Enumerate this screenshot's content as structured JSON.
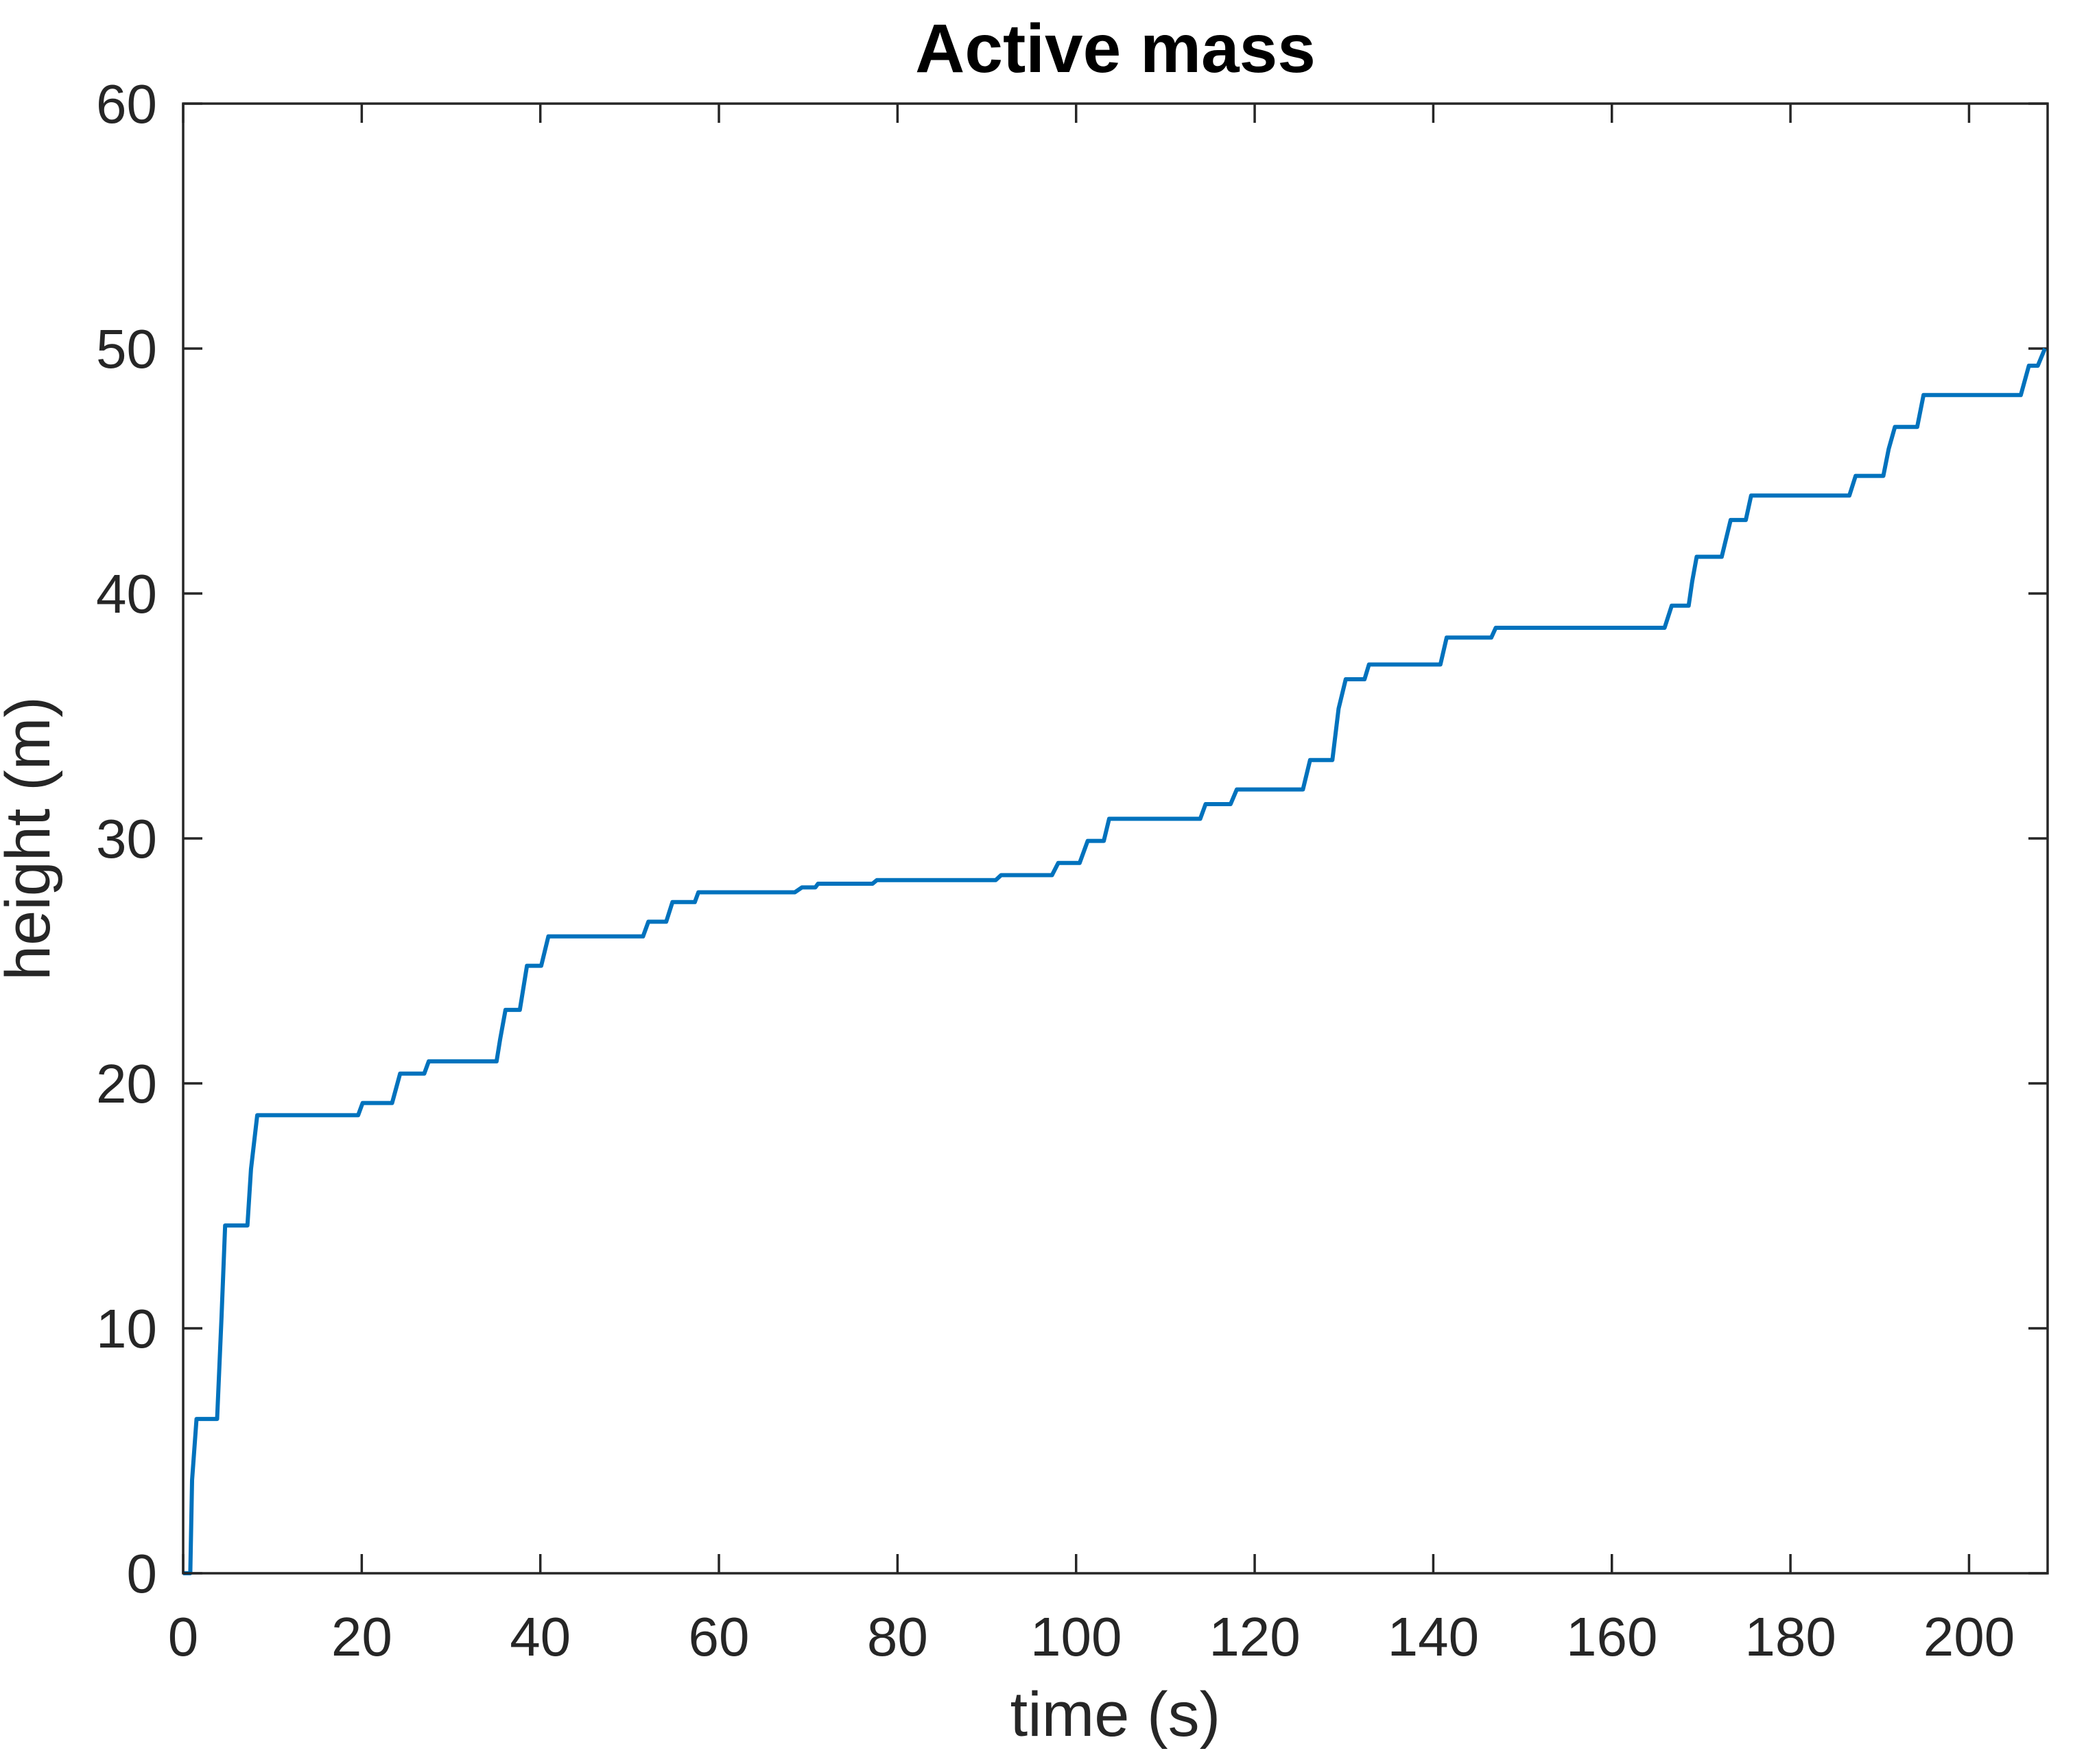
{
  "chart_data": {
    "type": "line",
    "subtype": "staircase",
    "title": "Active mass",
    "xlabel": "time (s)",
    "ylabel": "height (m)",
    "xlim": [
      0,
      208.8
    ],
    "ylim": [
      0,
      60
    ],
    "xticks": [
      0,
      20,
      40,
      60,
      80,
      100,
      120,
      140,
      160,
      180,
      200
    ],
    "yticks": [
      0,
      10,
      20,
      30,
      40,
      50,
      60
    ],
    "grid": false,
    "box": true,
    "legend": null,
    "line_color": "#0072BD",
    "axis_color": "#262626",
    "title_color": "#000000",
    "background_color": "#ffffff",
    "series": [
      {
        "name": "height",
        "points": [
          [
            0,
            0
          ],
          [
            0.8,
            0
          ],
          [
            1.0,
            3.8
          ],
          [
            1.5,
            6.3
          ],
          [
            3.8,
            6.3
          ],
          [
            4.3,
            10.5
          ],
          [
            4.7,
            14.2
          ],
          [
            7.2,
            14.2
          ],
          [
            7.6,
            16.5
          ],
          [
            8.3,
            18.7
          ],
          [
            19.6,
            18.7
          ],
          [
            20.1,
            19.2
          ],
          [
            23.4,
            19.2
          ],
          [
            24.3,
            20.4
          ],
          [
            27.0,
            20.4
          ],
          [
            27.5,
            20.9
          ],
          [
            35.1,
            20.9
          ],
          [
            35.5,
            21.8
          ],
          [
            36.1,
            23.0
          ],
          [
            37.7,
            23.0
          ],
          [
            38.5,
            24.8
          ],
          [
            40.1,
            24.8
          ],
          [
            40.9,
            26.0
          ],
          [
            51.5,
            26.0
          ],
          [
            52.1,
            26.6
          ],
          [
            54.1,
            26.6
          ],
          [
            54.8,
            27.4
          ],
          [
            57.3,
            27.4
          ],
          [
            57.7,
            27.8
          ],
          [
            68.5,
            27.8
          ],
          [
            69.3,
            28.0
          ],
          [
            70.8,
            28.0
          ],
          [
            71.1,
            28.15
          ],
          [
            77.2,
            28.15
          ],
          [
            77.7,
            28.3
          ],
          [
            91.0,
            28.3
          ],
          [
            91.6,
            28.5
          ],
          [
            97.3,
            28.5
          ],
          [
            98.0,
            29.0
          ],
          [
            100.4,
            29.0
          ],
          [
            101.3,
            29.9
          ],
          [
            103.1,
            29.9
          ],
          [
            103.7,
            30.8
          ],
          [
            113.9,
            30.8
          ],
          [
            114.5,
            31.4
          ],
          [
            117.3,
            31.4
          ],
          [
            118.0,
            32.0
          ],
          [
            125.4,
            32.0
          ],
          [
            126.2,
            33.2
          ],
          [
            128.7,
            33.2
          ],
          [
            129.4,
            35.3
          ],
          [
            130.2,
            36.5
          ],
          [
            132.3,
            36.5
          ],
          [
            132.8,
            37.1
          ],
          [
            140.8,
            37.1
          ],
          [
            141.5,
            38.2
          ],
          [
            146.5,
            38.2
          ],
          [
            147.0,
            38.6
          ],
          [
            165.9,
            38.6
          ],
          [
            166.7,
            39.5
          ],
          [
            168.6,
            39.5
          ],
          [
            169.0,
            40.5
          ],
          [
            169.5,
            41.5
          ],
          [
            172.3,
            41.5
          ],
          [
            173.3,
            43.0
          ],
          [
            175.0,
            43.0
          ],
          [
            175.6,
            44.0
          ],
          [
            186.6,
            44.0
          ],
          [
            187.3,
            44.8
          ],
          [
            190.4,
            44.8
          ],
          [
            191.0,
            45.9
          ],
          [
            191.7,
            46.8
          ],
          [
            194.2,
            46.8
          ],
          [
            194.9,
            48.1
          ],
          [
            205.8,
            48.1
          ],
          [
            206.7,
            49.3
          ],
          [
            207.7,
            49.3
          ],
          [
            208.5,
            50.0
          ]
        ]
      }
    ]
  }
}
